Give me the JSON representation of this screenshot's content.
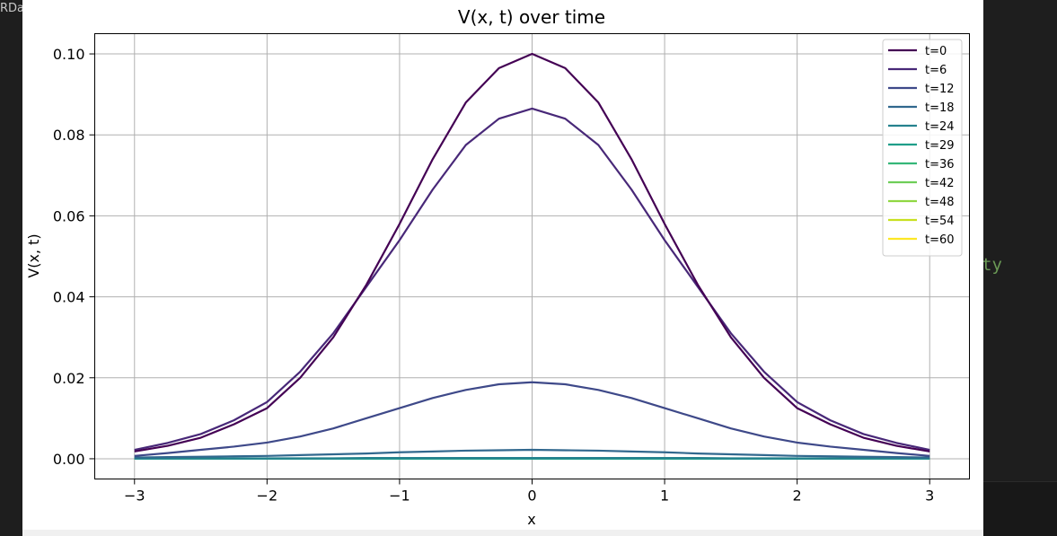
{
  "background": {
    "left_text": "RDa",
    "right_text": "ty"
  },
  "chart_data": {
    "type": "line",
    "title": "V(x, t) over time",
    "xlabel": "x",
    "ylabel": "V(x, t)",
    "xlim": [
      -3.3,
      3.3
    ],
    "ylim": [
      -0.005,
      0.105
    ],
    "xticks": [
      -3,
      -2,
      -1,
      0,
      1,
      2,
      3
    ],
    "xtick_labels": [
      "−3",
      "−2",
      "−1",
      "0",
      "1",
      "2",
      "3"
    ],
    "yticks": [
      0.0,
      0.02,
      0.04,
      0.06,
      0.08,
      0.1
    ],
    "ytick_labels": [
      "0.00",
      "0.02",
      "0.04",
      "0.06",
      "0.08",
      "0.10"
    ],
    "grid": true,
    "legend_position": "top-right",
    "x": [
      -3,
      -2.75,
      -2.5,
      -2.25,
      -2,
      -1.75,
      -1.5,
      -1.25,
      -1,
      -0.75,
      -0.5,
      -0.25,
      0,
      0.25,
      0.5,
      0.75,
      1,
      1.25,
      1.5,
      1.75,
      2,
      2.25,
      2.5,
      2.75,
      3
    ],
    "series": [
      {
        "name": "t=0",
        "color": "#440154",
        "values": [
          0.0018,
          0.0032,
          0.0052,
          0.0085,
          0.0125,
          0.02,
          0.03,
          0.043,
          0.058,
          0.074,
          0.088,
          0.0965,
          0.1,
          0.0965,
          0.088,
          0.074,
          0.058,
          0.043,
          0.03,
          0.02,
          0.0125,
          0.0085,
          0.0052,
          0.0032,
          0.0018
        ]
      },
      {
        "name": "t=6",
        "color": "#482878",
        "values": [
          0.0022,
          0.0039,
          0.0061,
          0.0095,
          0.014,
          0.0215,
          0.031,
          0.0425,
          0.054,
          0.0665,
          0.0775,
          0.084,
          0.0865,
          0.084,
          0.0775,
          0.0665,
          0.054,
          0.0425,
          0.031,
          0.0215,
          0.014,
          0.0095,
          0.0061,
          0.0039,
          0.0022
        ]
      },
      {
        "name": "t=12",
        "color": "#3e4989",
        "values": [
          0.0007,
          0.0014,
          0.0022,
          0.003,
          0.004,
          0.0055,
          0.0075,
          0.01,
          0.0125,
          0.015,
          0.017,
          0.0184,
          0.0189,
          0.0184,
          0.017,
          0.015,
          0.0125,
          0.01,
          0.0075,
          0.0055,
          0.004,
          0.003,
          0.0022,
          0.0014,
          0.0007
        ]
      },
      {
        "name": "t=18",
        "color": "#31688e",
        "values": [
          0.0003,
          0.0004,
          0.0005,
          0.0006,
          0.0007,
          0.0009,
          0.0011,
          0.0013,
          0.0016,
          0.0018,
          0.002,
          0.0021,
          0.0022,
          0.0021,
          0.002,
          0.0018,
          0.0016,
          0.0013,
          0.0011,
          0.0009,
          0.0007,
          0.0006,
          0.0005,
          0.0004,
          0.0003
        ]
      },
      {
        "name": "t=24",
        "color": "#26828e",
        "values": [
          0.0001,
          0.0001,
          0.0001,
          0.0001,
          0.0001,
          0.0001,
          0.0001,
          0.0002,
          0.0002,
          0.0002,
          0.0002,
          0.0002,
          0.0002,
          0.0002,
          0.0002,
          0.0002,
          0.0002,
          0.0002,
          0.0001,
          0.0001,
          0.0001,
          0.0001,
          0.0001,
          0.0001,
          0.0001
        ]
      },
      {
        "name": "t=29",
        "color": "#1f9e89",
        "values": [
          0,
          0,
          0,
          0,
          0,
          0,
          0,
          0,
          0,
          0,
          0,
          0,
          0,
          0,
          0,
          0,
          0,
          0,
          0,
          0,
          0,
          0,
          0,
          0,
          0
        ]
      },
      {
        "name": "t=36",
        "color": "#35b779",
        "values": [
          0,
          0,
          0,
          0,
          0,
          0,
          0,
          0,
          0,
          0,
          0,
          0,
          0,
          0,
          0,
          0,
          0,
          0,
          0,
          0,
          0,
          0,
          0,
          0,
          0
        ]
      },
      {
        "name": "t=42",
        "color": "#6ece58",
        "values": [
          0,
          0,
          0,
          0,
          0,
          0,
          0,
          0,
          0,
          0,
          0,
          0,
          0,
          0,
          0,
          0,
          0,
          0,
          0,
          0,
          0,
          0,
          0,
          0,
          0
        ]
      },
      {
        "name": "t=48",
        "color": "#90d743",
        "values": [
          0,
          0,
          0,
          0,
          0,
          0,
          0,
          0,
          0,
          0,
          0,
          0,
          0,
          0,
          0,
          0,
          0,
          0,
          0,
          0,
          0,
          0,
          0,
          0,
          0
        ]
      },
      {
        "name": "t=54",
        "color": "#c8e020",
        "values": [
          0,
          0,
          0,
          0,
          0,
          0,
          0,
          0,
          0,
          0,
          0,
          0,
          0,
          0,
          0,
          0,
          0,
          0,
          0,
          0,
          0,
          0,
          0,
          0,
          0
        ]
      },
      {
        "name": "t=60",
        "color": "#fde725",
        "values": [
          0,
          0,
          0,
          0,
          0,
          0,
          0,
          0,
          0,
          0,
          0,
          0,
          0,
          0,
          0,
          0,
          0,
          0,
          0,
          0,
          0,
          0,
          0,
          0,
          0
        ]
      }
    ]
  }
}
